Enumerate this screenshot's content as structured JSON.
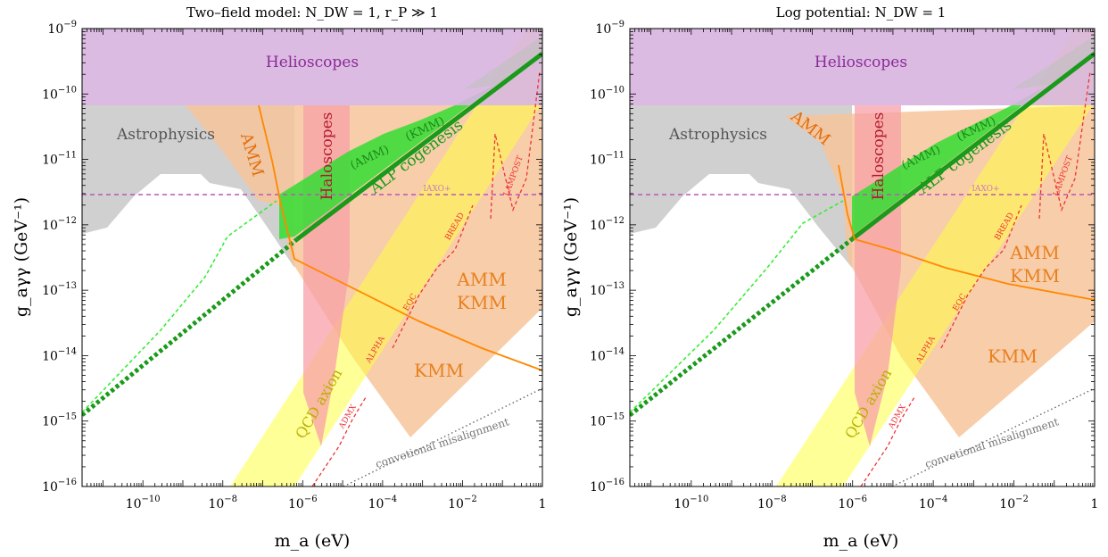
{
  "chart_data": [
    {
      "type": "area",
      "title": "Two–field model:   N_DW = 1, r_P ≫ 1",
      "xlabel": "m_a (eV)",
      "ylabel": "g_aγγ (GeV⁻¹)",
      "x_scale": "log",
      "y_scale": "log",
      "xlim": [
        3e-12,
        1
      ],
      "ylim": [
        1e-16,
        1e-09
      ],
      "grid": false,
      "x_ticks": [
        "10^-10",
        "10^-8",
        "10^-6",
        "10^-4",
        "10^-2",
        "1"
      ],
      "y_ticks": [
        "10^-16",
        "10^-15",
        "10^-14",
        "10^-13",
        "10^-12",
        "10^-11",
        "10^-10",
        "10^-9"
      ],
      "regions": [
        {
          "name": "Helioscopes",
          "color": "#d9b8e0",
          "ylim": [
            6e-11,
            1e-09
          ]
        },
        {
          "name": "Astrophysics",
          "color": "#c8c8c8"
        },
        {
          "name": "Haloscopes",
          "color": "#f8a8b0",
          "xlim": [
            1.6e-06,
            4.5e-05
          ]
        },
        {
          "name": "QCD axion",
          "color": "#ffff66"
        },
        {
          "name": "AMM",
          "color": "#f5b98a"
        },
        {
          "name": "KMM",
          "color": "#f5b98a"
        },
        {
          "name": "(AMM)",
          "color": "#44dd44"
        },
        {
          "name": "(KMM)",
          "color": "#44dd44"
        }
      ],
      "labels": {
        "helioscopes": "Helioscopes",
        "astrophysics": "Astrophysics",
        "amm": "AMM",
        "haloscopes": "Haloscopes",
        "amm_paren": "(AMM)",
        "kmm_paren": "(KMM)",
        "alp": "ALP cogenesis",
        "iaxo": "IAXO+",
        "bread": "BREAD",
        "lampost": "LAMPOST",
        "eqc": "EQC",
        "alpha": "ALPHA",
        "admx": "ADMX",
        "qcd": "QCD axion",
        "amm_kmm_1": "AMM",
        "amm_kmm_2": "KMM",
        "kmm": "KMM",
        "conv": "convetional misalignment"
      },
      "alp_band": {
        "x": [
          3e-12,
          1e-06,
          1
        ],
        "y": [
          1.3e-15,
          2.8e-13,
          2e-10
        ],
        "color": "#22aa22"
      },
      "iaxo_line": {
        "y": 2.5e-12,
        "color": "#bb55bb"
      },
      "amm_kmm_boundary": {
        "x": [
          2e-07,
          8e-07,
          1.1e-06,
          0.0001,
          0.01,
          1
        ],
        "y": [
          6e-11,
          2e-12,
          2.6e-13,
          8e-14,
          2e-14,
          5e-15
        ],
        "color": "#ff8c00"
      }
    },
    {
      "type": "area",
      "title": "Log potential:   N_DW = 1",
      "xlabel": "m_a (eV)",
      "ylabel": "g_aγγ (GeV⁻¹)",
      "x_scale": "log",
      "y_scale": "log",
      "xlim": [
        3e-12,
        1
      ],
      "ylim": [
        1e-16,
        1e-09
      ],
      "grid": false,
      "x_ticks": [
        "10^-10",
        "10^-8",
        "10^-6",
        "10^-4",
        "10^-2",
        "1"
      ],
      "y_ticks": [
        "10^-16",
        "10^-15",
        "10^-14",
        "10^-13",
        "10^-12",
        "10^-11",
        "10^-10",
        "10^-9"
      ],
      "regions": [
        {
          "name": "Helioscopes",
          "color": "#d9b8e0",
          "ylim": [
            6e-11,
            1e-09
          ]
        },
        {
          "name": "Astrophysics",
          "color": "#c8c8c8"
        },
        {
          "name": "Haloscopes",
          "color": "#f8a8b0",
          "xlim": [
            1.6e-06,
            4.5e-05
          ]
        },
        {
          "name": "QCD axion",
          "color": "#ffff66"
        },
        {
          "name": "AMM",
          "color": "#f5b98a"
        },
        {
          "name": "KMM",
          "color": "#f5b98a"
        },
        {
          "name": "(AMM)",
          "color": "#44dd44"
        },
        {
          "name": "(KMM)",
          "color": "#44dd44"
        }
      ],
      "labels": {
        "helioscopes": "Helioscopes",
        "astrophysics": "Astrophysics",
        "amm": "AMM",
        "haloscopes": "Haloscopes",
        "amm_paren": "(AMM)",
        "kmm_paren": "(KMM)",
        "alp": "ALP cogenesis",
        "iaxo": "IAXO+",
        "bread": "BREAD",
        "lampost": "LAMPOST",
        "eqc": "EQC",
        "alpha": "ALPHA",
        "admx": "ADMX",
        "qcd": "QCD axion",
        "amm_kmm_1": "AMM",
        "amm_kmm_2": "KMM",
        "kmm": "KMM",
        "conv": "convetional misalignment"
      },
      "alp_band": {
        "x": [
          3e-12,
          1e-06,
          1
        ],
        "y": [
          1.3e-15,
          2.8e-13,
          2e-10
        ],
        "color": "#22aa22"
      },
      "iaxo_line": {
        "y": 2.5e-12,
        "color": "#bb55bb"
      },
      "amm_kmm_boundary": {
        "x": [
          1e-06,
          2e-06,
          0.0001,
          0.01,
          1
        ],
        "y": [
          6e-13,
          2.5e-13,
          1.3e-13,
          9e-14,
          6.5e-14
        ],
        "color": "#ff8c00"
      }
    }
  ]
}
